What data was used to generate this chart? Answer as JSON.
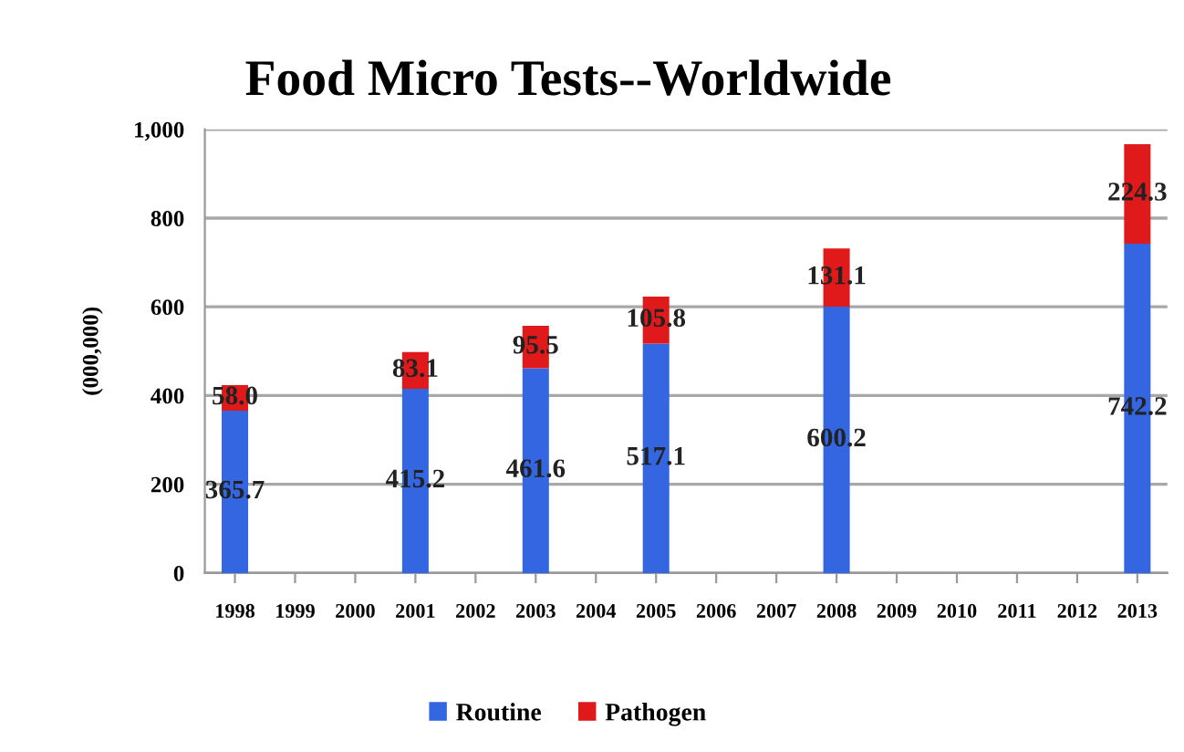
{
  "chart_data": {
    "type": "bar",
    "title": "Food Micro Tests--Worldwide",
    "ylabel": "(000,000)",
    "categories": [
      "1998",
      "1999",
      "2000",
      "2001",
      "2002",
      "2003",
      "2004",
      "2005",
      "2006",
      "2007",
      "2008",
      "2009",
      "2010",
      "2011",
      "2012",
      "2013"
    ],
    "series": [
      {
        "name": "Routine",
        "color": "#3366e0",
        "values": [
          365.7,
          null,
          null,
          415.2,
          null,
          461.6,
          null,
          517.1,
          null,
          null,
          600.2,
          null,
          null,
          null,
          null,
          742.2
        ],
        "value_labels": [
          "365.7",
          null,
          null,
          "415.2",
          null,
          "461.6",
          null,
          "517.1",
          null,
          null,
          "600.2",
          null,
          null,
          null,
          null,
          "742.2"
        ]
      },
      {
        "name": "Pathogen",
        "color": "#e01a1a",
        "values": [
          58.0,
          null,
          null,
          83.1,
          null,
          95.5,
          null,
          105.8,
          null,
          null,
          131.1,
          null,
          null,
          null,
          null,
          224.3
        ],
        "value_labels": [
          "58.0",
          null,
          null,
          "83.1",
          null,
          "95.5",
          null,
          "105.8",
          null,
          null,
          "131.1",
          null,
          null,
          null,
          null,
          "224.3"
        ]
      }
    ],
    "stacked": true,
    "ylim": [
      0,
      1000
    ],
    "yticks": [
      0,
      200,
      400,
      600,
      800,
      {
        "value": 1000,
        "label": "1,000"
      }
    ],
    "grid": "y",
    "legend": "bottom"
  }
}
